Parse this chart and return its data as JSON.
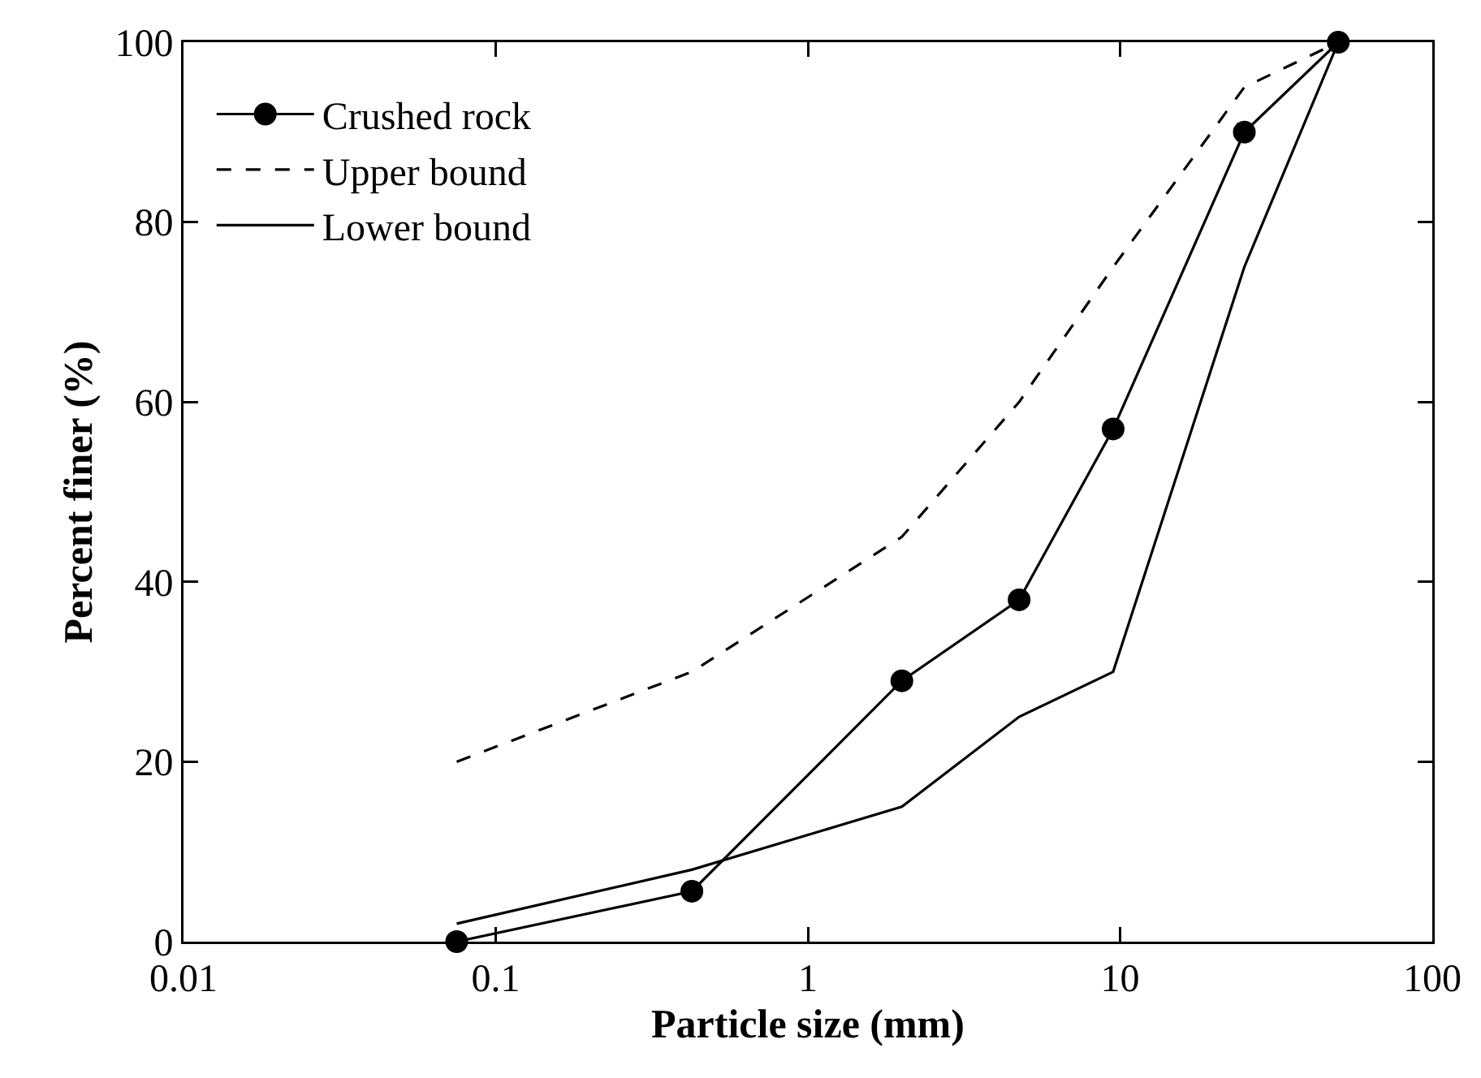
{
  "chart_data": {
    "type": "line",
    "xlabel": "Particle size (mm)",
    "ylabel": "Percent finer (%)",
    "log": "x",
    "xlim": [
      0.01,
      100
    ],
    "xticks": [
      0.01,
      0.1,
      1,
      10,
      100
    ],
    "ylim": [
      0,
      100
    ],
    "yticks": [
      0,
      20,
      40,
      60,
      80,
      100
    ],
    "grid": false,
    "legend": "top left",
    "series": [
      {
        "name": "Crushed rock",
        "color": "#000000",
        "marker": "circle",
        "line_style": "solid",
        "x": [
          0.075,
          0.425,
          2,
          4.75,
          9.5,
          25,
          50
        ],
        "values": [
          0,
          5.6,
          29,
          38,
          57,
          90,
          100
        ]
      },
      {
        "name": "Upper bound",
        "color": "#000000",
        "marker": "none",
        "line_style": "dashed",
        "x": [
          0.075,
          0.425,
          2,
          4.75,
          9.5,
          25,
          50
        ],
        "values": [
          20,
          30,
          45,
          60,
          75,
          95,
          100
        ]
      },
      {
        "name": "Lower bound",
        "color": "#000000",
        "marker": "none",
        "line_style": "solid",
        "x": [
          0.075,
          0.425,
          2,
          4.75,
          9.5,
          25,
          50
        ],
        "values": [
          2,
          8,
          15,
          25,
          30,
          75,
          100
        ]
      }
    ]
  }
}
